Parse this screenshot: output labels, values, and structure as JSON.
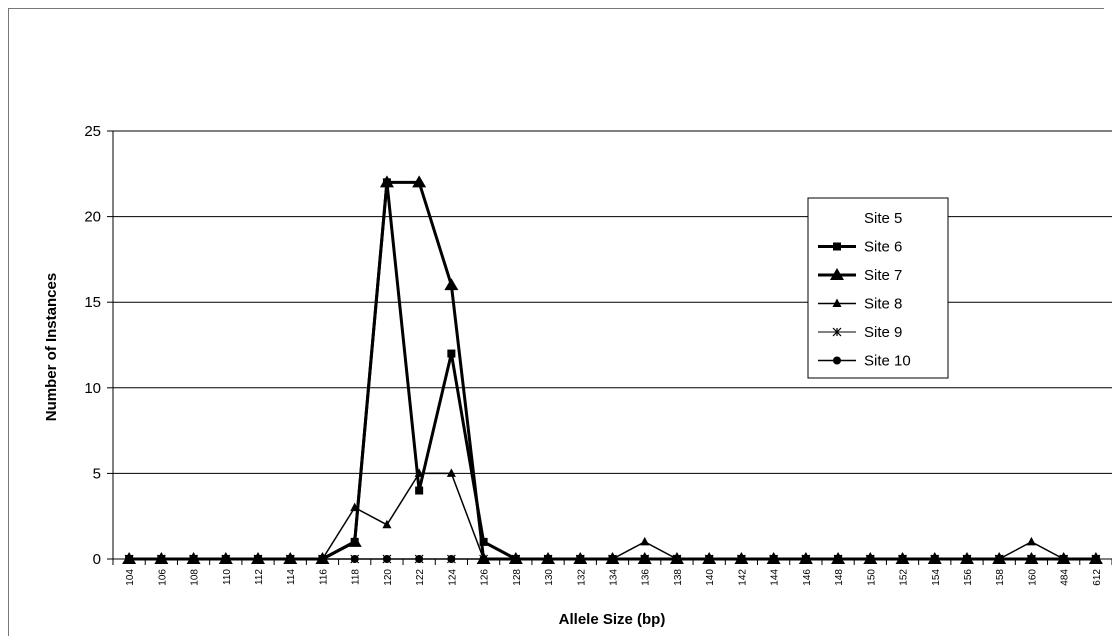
{
  "chart_data": {
    "type": "line",
    "xlabel": "Allele Size (bp)",
    "ylabel": "Number of Instances",
    "ylim": [
      0,
      25
    ],
    "yticks": [
      0,
      5,
      10,
      15,
      20,
      25
    ],
    "grid": "horizontal",
    "legend_position": "right",
    "categories": [
      "104",
      "106",
      "108",
      "110",
      "112",
      "114",
      "116",
      "118",
      "120",
      "122",
      "124",
      "126",
      "128",
      "130",
      "132",
      "134",
      "136",
      "138",
      "140",
      "142",
      "144",
      "146",
      "148",
      "150",
      "152",
      "154",
      "156",
      "158",
      "160",
      "484",
      "612"
    ],
    "series": [
      {
        "name": "Site 5",
        "marker": "none",
        "values": [
          0,
          0,
          0,
          0,
          0,
          0,
          0,
          0,
          0,
          0,
          0,
          0,
          0,
          0,
          0,
          0,
          0,
          0,
          0,
          0,
          0,
          0,
          0,
          0,
          0,
          0,
          0,
          0,
          0,
          0,
          0
        ]
      },
      {
        "name": "Site 6",
        "marker": "square",
        "values": [
          0,
          0,
          0,
          0,
          0,
          0,
          0,
          1,
          22,
          4,
          12,
          1,
          0,
          0,
          0,
          0,
          0,
          0,
          0,
          0,
          0,
          0,
          0,
          0,
          0,
          0,
          0,
          0,
          0,
          0,
          0
        ]
      },
      {
        "name": "Site 7",
        "marker": "triangle-large",
        "values": [
          0,
          0,
          0,
          0,
          0,
          0,
          0,
          1,
          22,
          22,
          16,
          0,
          0,
          0,
          0,
          0,
          0,
          0,
          0,
          0,
          0,
          0,
          0,
          0,
          0,
          0,
          0,
          0,
          0,
          0,
          0
        ]
      },
      {
        "name": "Site 8",
        "marker": "triangle-small",
        "values": [
          0,
          0,
          0,
          0,
          0,
          0,
          0,
          3,
          2,
          5,
          5,
          0,
          0,
          0,
          0,
          0,
          1,
          0,
          0,
          0,
          0,
          0,
          0,
          0,
          0,
          0,
          0,
          0,
          1,
          0,
          0
        ]
      },
      {
        "name": "Site 9",
        "marker": "asterisk",
        "values": [
          0,
          0,
          0,
          0,
          0,
          0,
          0,
          0,
          0,
          0,
          0,
          0,
          0,
          0,
          0,
          0,
          0,
          0,
          0,
          0,
          0,
          0,
          0,
          0,
          0,
          0,
          0,
          0,
          0,
          0,
          0
        ]
      },
      {
        "name": "Site 10",
        "marker": "circle",
        "values": [
          0,
          0,
          0,
          0,
          0,
          0,
          0,
          0,
          0,
          0,
          0,
          0,
          0,
          0,
          0,
          0,
          0,
          0,
          0,
          0,
          0,
          0,
          0,
          0,
          0,
          0,
          0,
          0,
          0,
          0,
          0
        ]
      }
    ]
  }
}
